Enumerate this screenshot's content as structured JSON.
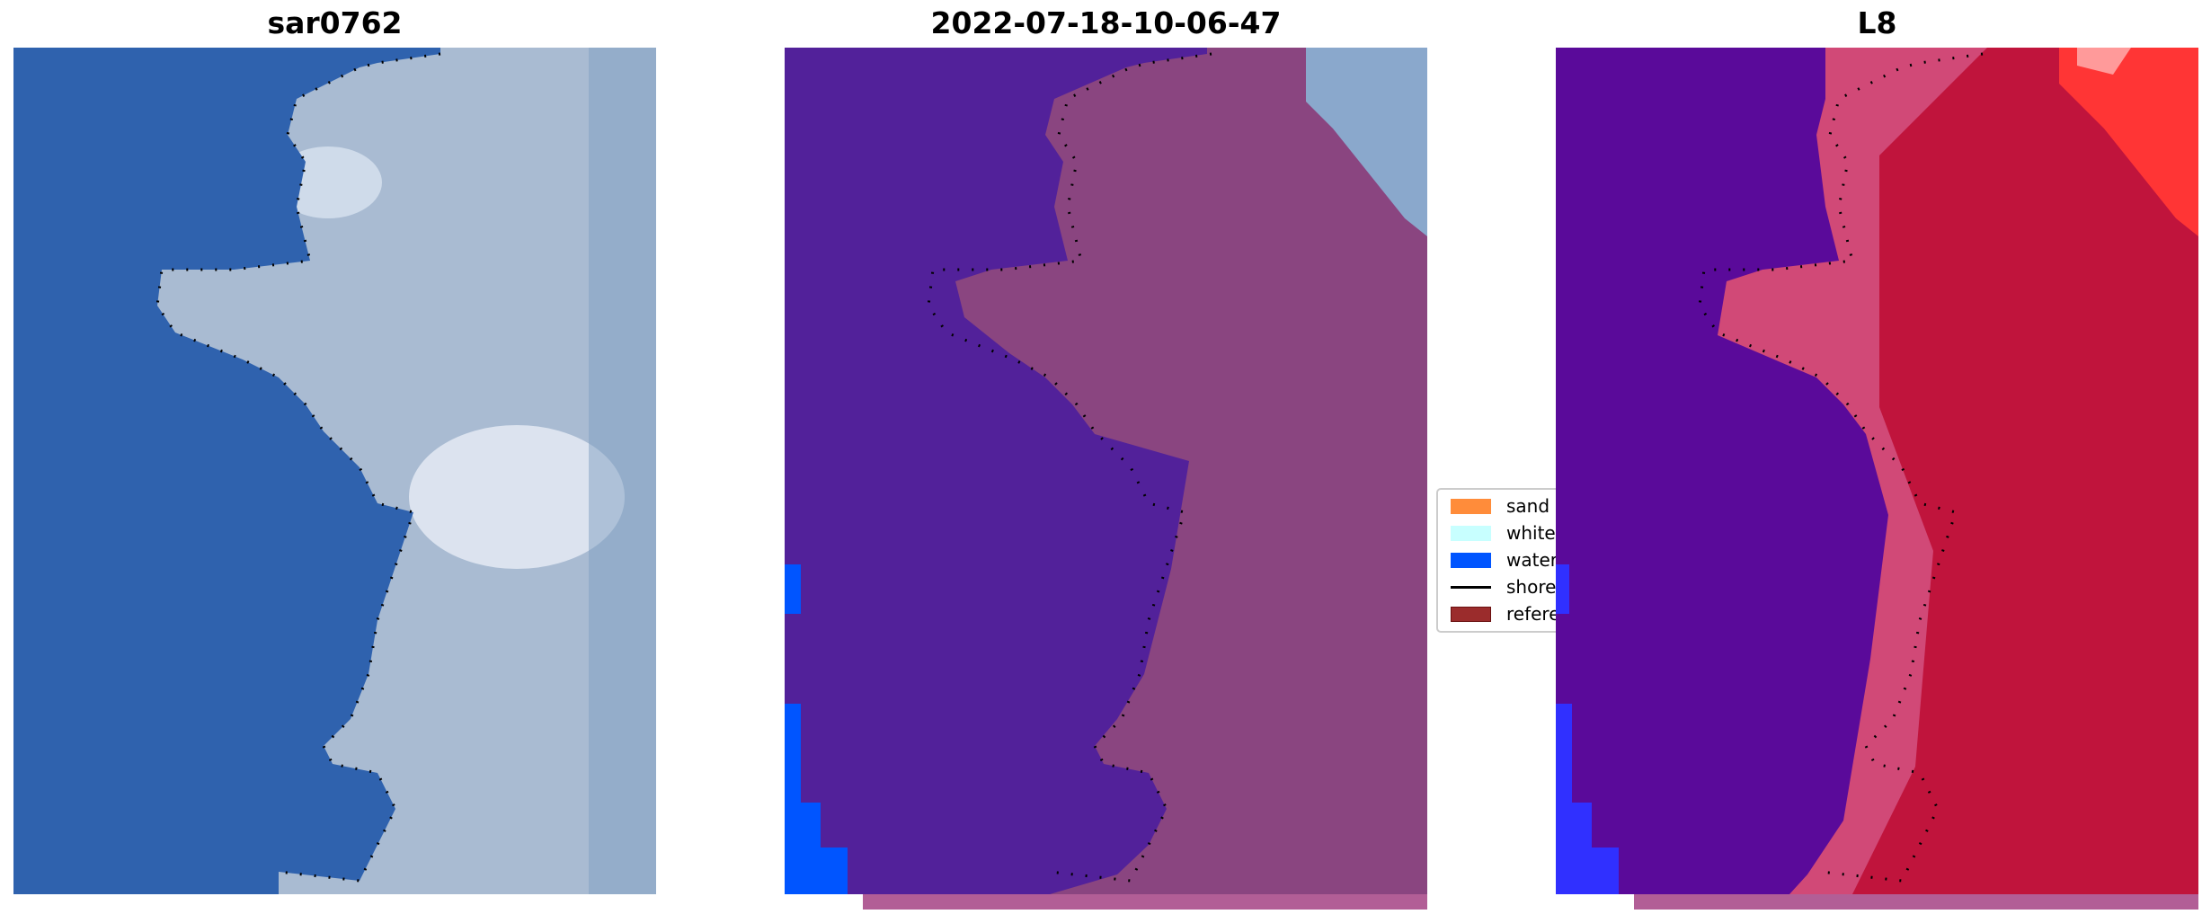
{
  "panels": [
    {
      "title": "sar0762",
      "water_color": "#2f62ae",
      "land_color": "#aabbd2"
    },
    {
      "title": "2022-07-18-10-06-47",
      "water_color": "#52219a",
      "land_color": "#8a4580"
    },
    {
      "title": "L8",
      "water_color": "#5a0a9a",
      "land_color": "#c0143c"
    }
  ],
  "legend": {
    "items": [
      {
        "label": "sand",
        "color": "#ff8c3a"
      },
      {
        "label": "whitew",
        "color": "#c8ffff"
      },
      {
        "label": "water",
        "color": "#0055ff"
      },
      {
        "label": "shorel",
        "color": "#000000"
      },
      {
        "label": "referer",
        "color": "#9b2c2c"
      }
    ]
  }
}
